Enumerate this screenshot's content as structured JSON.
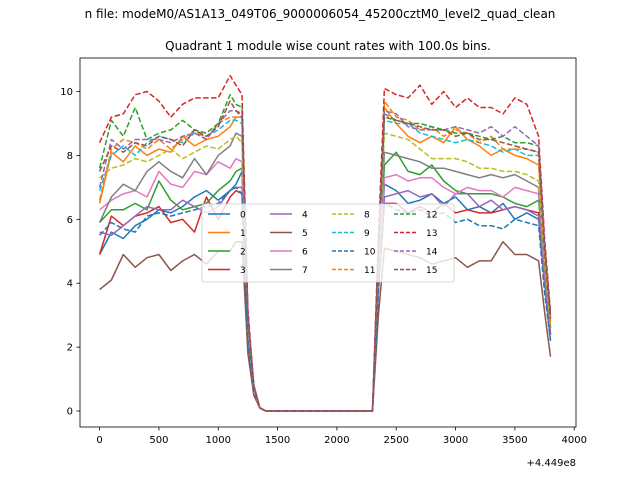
{
  "chart_data": {
    "type": "line",
    "suptitle": "n file: modeM0/AS1A13_049T06_9000006054_45200cztM0_level2_quad_clean",
    "title": "Quadrant 1 module wise count rates with 100.0s bins.",
    "xlabel": "",
    "ylabel": "",
    "x_offset_label": "+4.449e8",
    "xlim": [
      -165,
      4015
    ],
    "ylim": [
      -0.5,
      11.05
    ],
    "xticks": [
      0,
      500,
      1000,
      1500,
      2000,
      2500,
      3000,
      3500,
      4000
    ],
    "yticks": [
      0,
      2,
      4,
      6,
      8,
      10
    ],
    "legend": {
      "location": "center",
      "columns": 4
    },
    "x": [
      0,
      100,
      200,
      300,
      400,
      500,
      600,
      700,
      800,
      900,
      1000,
      1100,
      1150,
      1200,
      1250,
      1300,
      1350,
      1400,
      2300,
      2350,
      2400,
      2500,
      2600,
      2700,
      2800,
      2900,
      3000,
      3100,
      3200,
      3300,
      3400,
      3500,
      3600,
      3700,
      3750,
      3800
    ],
    "series": [
      {
        "name": "0",
        "color": "#1f77b4",
        "dash": "solid",
        "values": [
          4.9,
          5.6,
          5.4,
          5.8,
          6.0,
          6.3,
          6.2,
          6.4,
          6.7,
          6.9,
          6.6,
          6.9,
          7.1,
          7.5,
          2.5,
          0.6,
          0.1,
          0.0,
          0.0,
          4.0,
          7.1,
          6.9,
          6.5,
          6.6,
          6.8,
          6.5,
          6.7,
          6.3,
          6.4,
          6.2,
          6.5,
          6.0,
          6.2,
          6.0,
          4.0,
          2.2
        ]
      },
      {
        "name": "1",
        "color": "#ff7f0e",
        "dash": "solid",
        "values": [
          6.5,
          8.1,
          7.8,
          8.3,
          8.0,
          8.2,
          8.1,
          8.6,
          8.3,
          8.5,
          8.6,
          8.9,
          9.2,
          9.2,
          2.9,
          0.8,
          0.1,
          0.0,
          0.0,
          5.0,
          9.5,
          9.0,
          8.6,
          8.4,
          8.6,
          8.4,
          8.9,
          8.5,
          8.3,
          8.0,
          8.2,
          8.0,
          7.9,
          7.7,
          5.0,
          2.9
        ]
      },
      {
        "name": "2",
        "color": "#2ca02c",
        "dash": "solid",
        "values": [
          5.9,
          6.3,
          6.3,
          6.5,
          6.3,
          7.2,
          6.6,
          6.3,
          6.4,
          6.5,
          6.9,
          7.2,
          7.5,
          7.6,
          2.4,
          0.6,
          0.1,
          0.0,
          0.0,
          4.1,
          7.7,
          8.1,
          7.5,
          7.4,
          7.7,
          7.2,
          6.9,
          6.8,
          6.8,
          6.8,
          6.7,
          6.5,
          6.4,
          6.6,
          4.3,
          2.4
        ]
      },
      {
        "name": "3",
        "color": "#d62728",
        "dash": "solid",
        "values": [
          4.9,
          6.1,
          5.8,
          6.1,
          6.2,
          6.4,
          5.9,
          6.0,
          5.6,
          6.7,
          6.0,
          6.7,
          6.9,
          6.8,
          2.2,
          0.5,
          0.1,
          0.0,
          0.0,
          3.8,
          6.5,
          6.5,
          6.2,
          6.4,
          6.2,
          6.5,
          6.2,
          6.3,
          6.2,
          6.2,
          6.3,
          6.4,
          6.3,
          6.2,
          4.0,
          2.4
        ]
      },
      {
        "name": "4",
        "color": "#9467bd",
        "dash": "solid",
        "values": [
          5.6,
          5.5,
          5.8,
          6.1,
          6.4,
          6.3,
          6.3,
          6.6,
          6.4,
          6.2,
          6.4,
          6.9,
          7.0,
          7.0,
          2.3,
          0.6,
          0.1,
          0.0,
          0.0,
          3.9,
          6.7,
          6.8,
          6.9,
          6.7,
          6.8,
          6.4,
          6.8,
          6.8,
          6.4,
          6.6,
          6.3,
          6.4,
          6.3,
          6.1,
          4.0,
          2.4
        ]
      },
      {
        "name": "5",
        "color": "#8c564b",
        "dash": "solid",
        "values": [
          3.8,
          4.1,
          4.9,
          4.5,
          4.8,
          4.9,
          4.4,
          4.7,
          4.9,
          4.6,
          5.0,
          5.0,
          5.3,
          5.3,
          1.8,
          0.5,
          0.1,
          0.0,
          0.0,
          3.0,
          5.1,
          5.0,
          4.9,
          4.8,
          4.6,
          4.7,
          4.8,
          4.5,
          4.7,
          4.7,
          5.3,
          4.9,
          4.9,
          4.7,
          3.1,
          1.7
        ]
      },
      {
        "name": "6",
        "color": "#e377c2",
        "dash": "solid",
        "values": [
          6.3,
          6.6,
          6.8,
          6.9,
          6.7,
          7.5,
          7.1,
          7.0,
          7.5,
          7.4,
          7.8,
          7.6,
          7.9,
          7.8,
          2.5,
          0.6,
          0.1,
          0.0,
          0.0,
          4.2,
          7.3,
          7.4,
          7.2,
          7.3,
          7.3,
          7.0,
          6.8,
          7.0,
          6.9,
          6.9,
          6.7,
          7.0,
          6.9,
          6.8,
          4.4,
          2.6
        ]
      },
      {
        "name": "7",
        "color": "#7f7f7f",
        "dash": "solid",
        "values": [
          5.9,
          6.7,
          7.1,
          6.9,
          7.5,
          7.8,
          7.5,
          7.3,
          7.9,
          7.4,
          8.0,
          8.3,
          8.7,
          8.6,
          2.7,
          0.7,
          0.1,
          0.0,
          0.0,
          4.5,
          8.1,
          8.0,
          7.9,
          7.8,
          7.6,
          7.6,
          7.5,
          7.4,
          7.3,
          7.4,
          7.3,
          7.4,
          7.2,
          7.0,
          4.5,
          2.6
        ]
      },
      {
        "name": "8",
        "color": "#bcbd22",
        "dash": "dashed",
        "values": [
          7.3,
          7.6,
          7.7,
          7.9,
          7.8,
          8.0,
          8.2,
          7.9,
          8.1,
          8.3,
          8.2,
          8.5,
          8.6,
          8.4,
          2.7,
          0.7,
          0.1,
          0.0,
          0.0,
          4.6,
          8.7,
          8.6,
          8.5,
          8.2,
          7.9,
          7.9,
          7.9,
          7.8,
          7.6,
          7.6,
          7.5,
          7.5,
          7.4,
          7.2,
          4.7,
          2.7
        ]
      },
      {
        "name": "9",
        "color": "#17becf",
        "dash": "dashed",
        "values": [
          6.9,
          8.0,
          8.3,
          8.0,
          8.4,
          8.6,
          8.5,
          8.4,
          8.7,
          8.6,
          8.8,
          9.1,
          9.1,
          9.0,
          2.9,
          0.8,
          0.1,
          0.0,
          0.0,
          4.9,
          9.1,
          9.0,
          9.0,
          8.7,
          8.6,
          8.5,
          8.4,
          8.5,
          8.4,
          8.3,
          8.1,
          8.2,
          8.0,
          8.0,
          5.1,
          3.0
        ]
      },
      {
        "name": "10",
        "color": "#1f77b4",
        "dash": "dashed",
        "values": [
          5.5,
          5.9,
          5.7,
          5.6,
          6.1,
          6.2,
          6.1,
          6.2,
          6.3,
          6.4,
          6.5,
          6.9,
          7.0,
          6.8,
          2.2,
          0.6,
          0.1,
          0.0,
          0.0,
          3.7,
          6.5,
          6.3,
          6.2,
          6.3,
          6.1,
          6.2,
          5.9,
          6.0,
          5.8,
          5.8,
          5.7,
          6.0,
          5.9,
          5.8,
          3.7,
          2.2
        ]
      },
      {
        "name": "11",
        "color": "#ff7f0e",
        "dash": "dashed",
        "values": [
          6.6,
          8.2,
          8.5,
          8.4,
          8.2,
          8.5,
          8.2,
          8.5,
          8.8,
          8.5,
          9.0,
          9.2,
          9.2,
          9.2,
          2.9,
          0.8,
          0.1,
          0.0,
          0.0,
          4.9,
          9.7,
          9.2,
          9.1,
          8.8,
          8.9,
          8.6,
          8.8,
          8.7,
          8.4,
          8.6,
          8.2,
          8.2,
          8.2,
          8.1,
          5.0,
          2.8
        ]
      },
      {
        "name": "12",
        "color": "#2ca02c",
        "dash": "dashed",
        "values": [
          7.6,
          9.1,
          8.6,
          9.5,
          8.5,
          8.7,
          8.8,
          9.1,
          8.8,
          8.7,
          9.0,
          9.9,
          9.6,
          9.5,
          3.0,
          0.8,
          0.1,
          0.0,
          0.0,
          5.1,
          9.3,
          9.1,
          9.0,
          9.0,
          8.9,
          8.8,
          8.7,
          8.7,
          8.6,
          8.5,
          8.6,
          8.4,
          8.4,
          8.3,
          5.2,
          3.0
        ]
      },
      {
        "name": "13",
        "color": "#d62728",
        "dash": "dashed",
        "values": [
          8.4,
          9.2,
          9.3,
          9.9,
          10.0,
          9.7,
          9.2,
          9.6,
          9.8,
          9.8,
          9.8,
          10.5,
          10.2,
          9.9,
          3.2,
          0.8,
          0.1,
          0.0,
          0.0,
          5.5,
          10.1,
          9.9,
          9.8,
          10.2,
          9.6,
          10.0,
          9.5,
          9.8,
          9.5,
          9.5,
          9.3,
          9.8,
          9.6,
          8.6,
          5.4,
          3.1
        ]
      },
      {
        "name": "14",
        "color": "#9467bd",
        "dash": "dashed",
        "values": [
          7.0,
          8.5,
          8.2,
          8.5,
          8.5,
          8.5,
          8.4,
          8.6,
          8.7,
          8.5,
          9.0,
          9.4,
          9.4,
          9.3,
          3.0,
          0.8,
          0.1,
          0.0,
          0.0,
          5.0,
          9.4,
          9.3,
          8.9,
          8.8,
          8.8,
          8.8,
          8.9,
          8.8,
          8.7,
          8.9,
          8.6,
          8.9,
          8.6,
          8.3,
          5.2,
          2.9
        ]
      },
      {
        "name": "15",
        "color": "#8c564b",
        "dash": "dashed",
        "values": [
          7.5,
          8.3,
          8.1,
          8.4,
          8.3,
          8.6,
          8.5,
          8.3,
          8.8,
          8.6,
          8.9,
          9.7,
          9.4,
          9.2,
          2.9,
          0.8,
          0.1,
          0.0,
          0.0,
          5.0,
          9.2,
          9.1,
          9.0,
          8.9,
          8.8,
          8.8,
          8.6,
          8.7,
          8.5,
          8.5,
          8.4,
          8.3,
          8.2,
          8.1,
          5.0,
          2.9
        ]
      }
    ]
  }
}
